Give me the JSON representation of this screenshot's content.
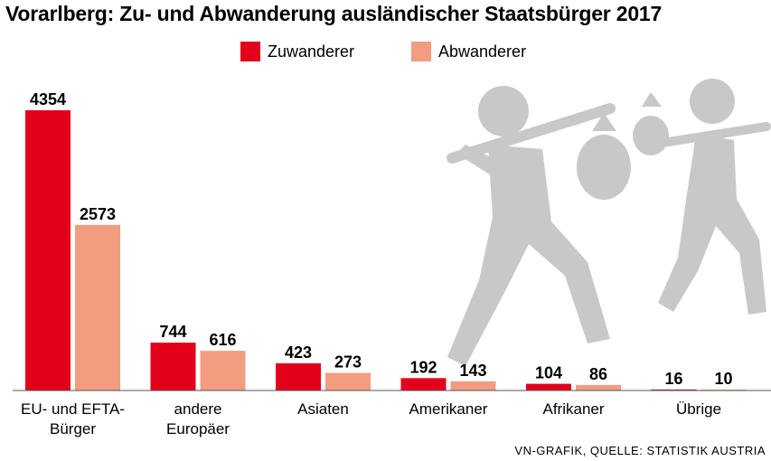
{
  "chart_data": {
    "type": "bar",
    "title": "Vorarlberg: Zu- und Abwanderung ausländischer Staatsbürger 2017",
    "categories": [
      [
        "EU- und EFTA-",
        "Bürger"
      ],
      [
        "andere",
        "Europäer"
      ],
      [
        "Asiaten"
      ],
      [
        "Amerikaner"
      ],
      [
        "Afrikaner"
      ],
      [
        "Übrige"
      ]
    ],
    "series": [
      {
        "name": "Zuwanderer",
        "values": [
          4354,
          744,
          423,
          192,
          104,
          16
        ],
        "color": "#e3001b"
      },
      {
        "name": "Abwanderer",
        "values": [
          2573,
          616,
          273,
          143,
          86,
          10
        ],
        "color": "#f29c80"
      }
    ],
    "ylim": [
      0,
      4354
    ],
    "legend": "top-center",
    "grid": false,
    "source": "VN-GRAFIK, QUELLE: STATISTIK AUSTRIA"
  },
  "decoration": {
    "illustration": "two walking figures carrying bundles on sticks",
    "icon_color": "#c8c8c8"
  }
}
